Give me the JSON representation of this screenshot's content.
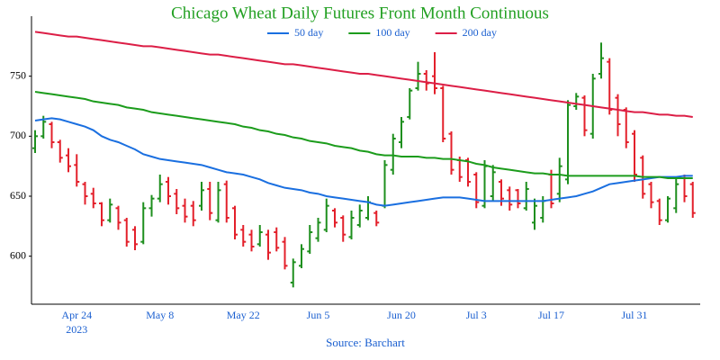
{
  "chart_data": {
    "type": "ohlc",
    "title": "Chicago Wheat Daily Futures Front Month Continuous",
    "source": "Source: Barchart",
    "x_year": "2023",
    "categories": [
      null,
      null,
      null,
      null,
      null,
      "Apr 24",
      null,
      null,
      null,
      null,
      null,
      null,
      null,
      null,
      null,
      "May 8",
      null,
      null,
      null,
      null,
      null,
      null,
      null,
      null,
      null,
      "May 22",
      null,
      null,
      null,
      null,
      null,
      null,
      null,
      null,
      "Jun 5",
      null,
      null,
      null,
      null,
      null,
      null,
      null,
      null,
      null,
      "Jun 20",
      null,
      null,
      null,
      null,
      null,
      null,
      null,
      null,
      "Jul 3",
      null,
      null,
      null,
      null,
      null,
      null,
      null,
      null,
      "Jul 17",
      null,
      null,
      null,
      null,
      null,
      null,
      null,
      null,
      null,
      "Jul 31",
      null,
      null,
      null,
      null,
      null,
      null,
      null
    ],
    "open": [
      690,
      700,
      710,
      695,
      684,
      676,
      660,
      652,
      644,
      630,
      640,
      630,
      622,
      612,
      640,
      648,
      662,
      652,
      642,
      642,
      642,
      656,
      630,
      660,
      640,
      622,
      618,
      610,
      618,
      620,
      612,
      578,
      592,
      604,
      615,
      622,
      638,
      632,
      616,
      626,
      632,
      636,
      642,
      672,
      695,
      716,
      740,
      752,
      750,
      740,
      702,
      680,
      680,
      668,
      642,
      650,
      662,
      655,
      655,
      640,
      628,
      632,
      668,
      652,
      664,
      725,
      732,
      702,
      752,
      762,
      732,
      722,
      702,
      682,
      660,
      646,
      630,
      640,
      665,
      660
    ],
    "high": [
      705,
      717,
      712,
      697,
      690,
      685,
      662,
      657,
      645,
      648,
      642,
      632,
      625,
      645,
      651,
      668,
      666,
      656,
      648,
      646,
      662,
      662,
      662,
      663,
      642,
      626,
      622,
      626,
      622,
      624,
      616,
      598,
      610,
      626,
      632,
      648,
      640,
      634,
      638,
      643,
      650,
      638,
      680,
      702,
      716,
      740,
      762,
      755,
      770,
      742,
      704,
      683,
      682,
      670,
      680,
      676,
      664,
      658,
      656,
      662,
      648,
      650,
      672,
      682,
      730,
      736,
      734,
      752,
      778,
      765,
      735,
      724,
      705,
      684,
      662,
      648,
      650,
      665,
      668,
      662
    ],
    "low": [
      686,
      698,
      690,
      678,
      670,
      658,
      643,
      640,
      625,
      628,
      622,
      608,
      605,
      610,
      633,
      645,
      643,
      635,
      628,
      625,
      638,
      630,
      628,
      628,
      614,
      608,
      604,
      608,
      597,
      604,
      589,
      574,
      590,
      602,
      612,
      620,
      624,
      612,
      614,
      624,
      630,
      625,
      640,
      668,
      690,
      714,
      738,
      738,
      735,
      695,
      668,
      662,
      658,
      640,
      640,
      646,
      642,
      638,
      640,
      638,
      622,
      628,
      640,
      645,
      660,
      722,
      700,
      698,
      748,
      718,
      700,
      690,
      662,
      648,
      640,
      626,
      628,
      636,
      645,
      632
    ],
    "close": [
      700,
      712,
      695,
      682,
      675,
      662,
      650,
      644,
      630,
      643,
      628,
      612,
      610,
      640,
      648,
      660,
      650,
      640,
      633,
      630,
      655,
      636,
      655,
      632,
      618,
      612,
      608,
      620,
      603,
      607,
      592,
      595,
      606,
      620,
      628,
      642,
      628,
      618,
      632,
      638,
      645,
      628,
      676,
      698,
      712,
      738,
      752,
      744,
      740,
      698,
      672,
      666,
      662,
      645,
      675,
      670,
      648,
      643,
      644,
      656,
      642,
      646,
      644,
      675,
      726,
      733,
      705,
      748,
      765,
      722,
      710,
      695,
      668,
      652,
      645,
      630,
      648,
      660,
      650,
      636
    ],
    "up_color": "#1e8f1e",
    "down_color": "#e3202b",
    "overlays": [
      {
        "name": "50 day",
        "color": "#1a6fe0",
        "values": [
          713,
          714,
          715,
          714,
          712,
          710,
          708,
          705,
          700,
          697,
          695,
          692,
          689,
          685,
          683,
          681,
          680,
          679,
          678,
          677,
          676,
          674,
          672,
          670,
          669,
          668,
          666,
          664,
          661,
          659,
          657,
          656,
          655,
          653,
          652,
          650,
          649,
          648,
          647,
          646,
          645,
          643,
          642,
          643,
          644,
          645,
          646,
          647,
          648,
          649,
          649,
          649,
          648,
          647,
          646,
          646,
          646,
          646,
          646,
          646,
          646,
          646,
          647,
          648,
          649,
          650,
          652,
          654,
          657,
          660,
          661,
          662,
          663,
          664,
          665,
          666,
          666,
          666,
          667,
          667
        ]
      },
      {
        "name": "100 day",
        "color": "#1c9c1c",
        "values": [
          737,
          736,
          735,
          734,
          733,
          732,
          731,
          729,
          728,
          727,
          726,
          724,
          723,
          722,
          720,
          719,
          718,
          717,
          716,
          715,
          714,
          713,
          712,
          711,
          710,
          708,
          707,
          705,
          704,
          702,
          701,
          699,
          698,
          696,
          695,
          694,
          692,
          691,
          690,
          688,
          687,
          685,
          684,
          684,
          683,
          683,
          683,
          682,
          682,
          681,
          681,
          680,
          679,
          677,
          676,
          674,
          673,
          672,
          671,
          670,
          669,
          669,
          668,
          668,
          667,
          667,
          667,
          667,
          667,
          667,
          667,
          667,
          667,
          666,
          666,
          666,
          665,
          665,
          665,
          665
        ]
      },
      {
        "name": "200 day",
        "color": "#dc1e46",
        "values": [
          787,
          786,
          785,
          784,
          783,
          783,
          782,
          781,
          780,
          779,
          778,
          777,
          776,
          775,
          775,
          774,
          773,
          772,
          771,
          770,
          769,
          768,
          768,
          767,
          766,
          765,
          764,
          763,
          762,
          761,
          760,
          760,
          759,
          758,
          757,
          756,
          755,
          754,
          753,
          752,
          752,
          751,
          750,
          749,
          748,
          747,
          746,
          745,
          744,
          743,
          742,
          741,
          740,
          739,
          738,
          737,
          736,
          735,
          734,
          733,
          732,
          731,
          730,
          729,
          728,
          727,
          726,
          725,
          724,
          723,
          722,
          721,
          720,
          720,
          719,
          718,
          718,
          717,
          717,
          716
        ]
      }
    ],
    "ylim": [
      560,
      800
    ],
    "yticks": [
      600,
      650,
      700,
      750
    ]
  }
}
